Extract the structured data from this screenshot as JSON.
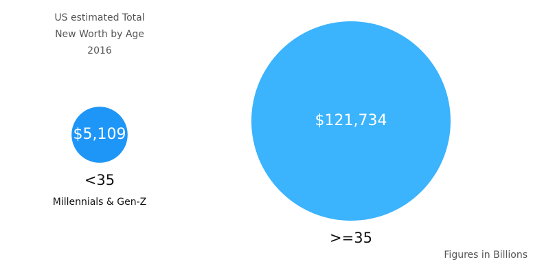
{
  "chart_data": {
    "type": "bubble",
    "title": "US estimated Total New Worth by Age",
    "subtitle": "2016",
    "categories": [
      "<35",
      ">=35"
    ],
    "category_notes": [
      "Millennials & Gen-Z",
      null
    ],
    "values": [
      5109,
      121734
    ],
    "value_labels": [
      "$5,109",
      "$121,734"
    ],
    "colors": [
      "#1e96f7",
      "#3bb3fd"
    ],
    "note": "Figures in Billions"
  }
}
